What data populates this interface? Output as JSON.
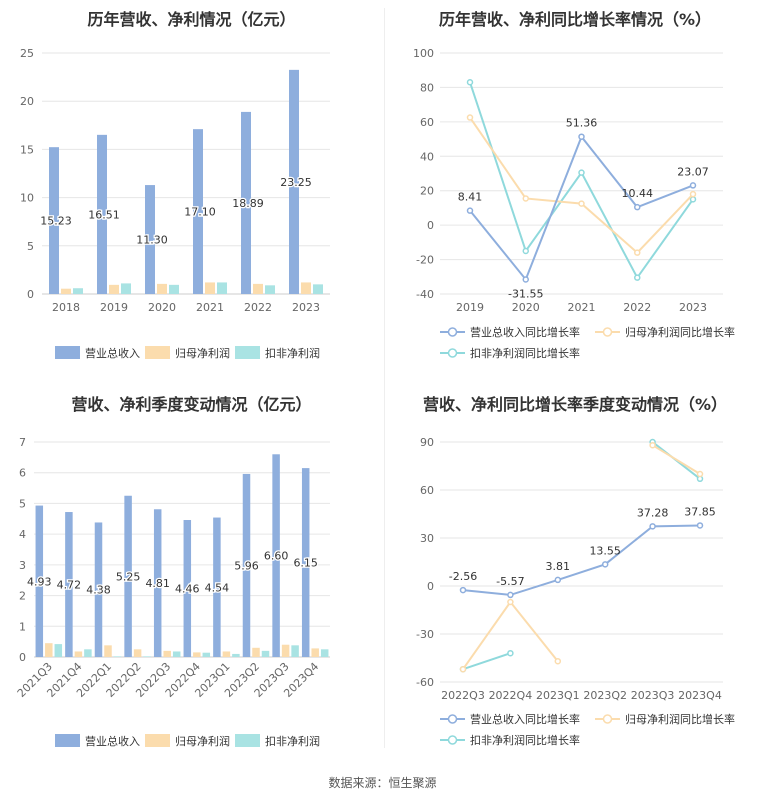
{
  "colors": {
    "revenue": "#8eaedd",
    "parent_profit": "#fbdcad",
    "deducted_profit": "#a9e3e3",
    "revenue_line": "#8eaedd",
    "parent_line": "#fbdcad",
    "deducted_line": "#8fd9dc"
  },
  "legend": {
    "revenue": "营业总收入",
    "parent_profit": "归母净利润",
    "deducted_profit": "扣非净利润",
    "revenue_growth": "营业总收入同比增长率",
    "parent_growth": "归母净利润同比增长率",
    "deducted_growth": "扣非净利润同比增长率"
  },
  "source": "数据来源：恒生聚源",
  "chart_data": [
    {
      "id": "annual-revenue-profit",
      "type": "bar",
      "title": "历年营收、净利情况（亿元）",
      "categories": [
        "2018",
        "2019",
        "2020",
        "2021",
        "2022",
        "2023"
      ],
      "ylim": [
        0,
        25
      ],
      "yticks": [
        0,
        5,
        10,
        15,
        20,
        25
      ],
      "series": [
        {
          "name": "营业总收入",
          "values": [
            15.23,
            16.51,
            11.3,
            17.1,
            18.89,
            23.25
          ],
          "labels": [
            "15.23",
            "16.51",
            "11.30",
            "17.10",
            "18.89",
            "23.25"
          ]
        },
        {
          "name": "归母净利润",
          "values": [
            0.55,
            0.95,
            1.05,
            1.2,
            1.05,
            1.2
          ]
        },
        {
          "name": "扣非净利润",
          "values": [
            0.6,
            1.1,
            0.95,
            1.2,
            0.9,
            1.0
          ]
        }
      ],
      "legend_position": "bottom"
    },
    {
      "id": "annual-growth",
      "type": "line",
      "title": "历年营收、净利同比增长率情况（%）",
      "categories": [
        "2019",
        "2020",
        "2021",
        "2022",
        "2023"
      ],
      "ylim": [
        -40,
        100
      ],
      "yticks": [
        -40,
        -20,
        0,
        20,
        40,
        60,
        80,
        100
      ],
      "series": [
        {
          "name": "营业总收入同比增长率",
          "values": [
            8.41,
            -31.55,
            51.36,
            10.44,
            23.07
          ],
          "labels": [
            "8.41",
            "-31.55",
            "51.36",
            "10.44",
            "23.07"
          ]
        },
        {
          "name": "归母净利润同比增长率",
          "values": [
            62.5,
            15.5,
            12.5,
            -16,
            18
          ]
        },
        {
          "name": "扣非净利润同比增长率",
          "values": [
            83,
            -15,
            30.5,
            -30.5,
            15
          ]
        }
      ],
      "legend_position": "bottom"
    },
    {
      "id": "quarterly-revenue-profit",
      "type": "bar",
      "title": "营收、净利季度变动情况（亿元）",
      "categories": [
        "2021Q3",
        "2021Q4",
        "2022Q1",
        "2022Q2",
        "2022Q3",
        "2022Q4",
        "2023Q1",
        "2023Q2",
        "2023Q3",
        "2023Q4"
      ],
      "ylim": [
        0,
        7
      ],
      "yticks": [
        0,
        1,
        2,
        3,
        4,
        5,
        6,
        7
      ],
      "series": [
        {
          "name": "营业总收入",
          "values": [
            4.93,
            4.72,
            4.38,
            5.25,
            4.81,
            4.46,
            4.54,
            5.96,
            6.6,
            6.15
          ],
          "labels": [
            "4.93",
            "4.72",
            "4.38",
            "5.25",
            "4.81",
            "4.46",
            "4.54",
            "5.96",
            "6.60",
            "6.15"
          ]
        },
        {
          "name": "归母净利润",
          "values": [
            0.45,
            0.18,
            0.38,
            0.25,
            0.2,
            0.15,
            0.18,
            0.3,
            0.4,
            0.28
          ]
        },
        {
          "name": "扣非净利润",
          "values": [
            0.42,
            0.25,
            0.02,
            0.02,
            0.18,
            0.14,
            0.1,
            0.2,
            0.38,
            0.25
          ]
        }
      ],
      "legend_position": "bottom"
    },
    {
      "id": "quarterly-growth",
      "type": "line",
      "title": "营收、净利同比增长率季度变动情况（%）",
      "categories": [
        "2022Q3",
        "2022Q4",
        "2023Q1",
        "2023Q2",
        "2023Q3",
        "2023Q4"
      ],
      "ylim": [
        -60,
        90
      ],
      "yticks": [
        -60,
        -30,
        0,
        30,
        60,
        90
      ],
      "series": [
        {
          "name": "营业总收入同比增长率",
          "values": [
            -2.56,
            -5.57,
            3.81,
            13.55,
            37.28,
            37.85
          ],
          "labels": [
            "-2.56",
            "-5.57",
            "3.81",
            "13.55",
            "37.28",
            "37.85"
          ]
        },
        {
          "name": "归母净利润同比增长率",
          "values": [
            -52,
            -10,
            -47,
            null,
            88,
            70
          ]
        },
        {
          "name": "扣非净利润同比增长率",
          "values": [
            -52,
            -42,
            null,
            null,
            90,
            67
          ]
        }
      ],
      "legend_position": "bottom"
    }
  ]
}
